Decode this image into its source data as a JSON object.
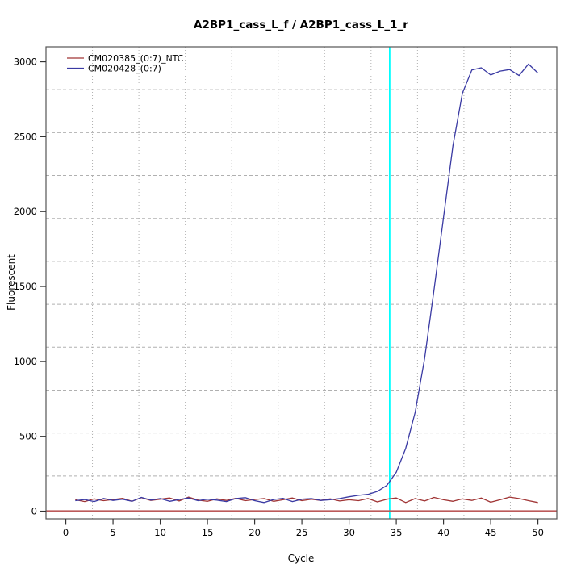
{
  "figure": {
    "background": "#ffffff"
  },
  "chart_data": {
    "type": "line",
    "title": "A2BP1_cass_L_f / A2BP1_cass_L_1_r",
    "xlabel": "Cycle",
    "ylabel": "Fluorescent",
    "x_ticks": [
      0,
      5,
      10,
      15,
      20,
      25,
      30,
      35,
      40,
      45,
      50
    ],
    "y_ticks": [
      0,
      500,
      1000,
      1500,
      2000,
      2500,
      3000
    ],
    "xlim": [
      -2.1,
      52.0
    ],
    "ylim": [
      -51,
      3100
    ],
    "grid": {
      "nx": 11,
      "ny": 11,
      "color": "#b0b0b0"
    },
    "x": [
      1,
      2,
      3,
      4,
      5,
      6,
      7,
      8,
      9,
      10,
      11,
      12,
      13,
      14,
      15,
      16,
      17,
      18,
      19,
      20,
      21,
      22,
      23,
      24,
      25,
      26,
      27,
      28,
      29,
      30,
      31,
      32,
      33,
      34,
      35,
      36,
      37,
      38,
      39,
      40,
      41,
      42,
      43,
      44,
      45,
      46,
      47,
      48,
      49,
      50
    ],
    "series": [
      {
        "name": "CM020385_(0:7)_NTC",
        "color": "#a03434",
        "values": [
          76,
          64,
          82,
          70,
          78,
          86,
          66,
          90,
          72,
          80,
          88,
          68,
          94,
          74,
          66,
          82,
          72,
          86,
          70,
          78,
          84,
          66,
          76,
          88,
          70,
          80,
          72,
          82,
          68,
          76,
          70,
          84,
          62,
          80,
          88,
          58,
          84,
          68,
          92,
          76,
          66,
          82,
          72,
          88,
          60,
          76,
          94,
          84,
          70,
          58
        ]
      },
      {
        "name": "CM020428_(0:7)",
        "color": "#3a3aa3",
        "values": [
          70,
          78,
          64,
          85,
          72,
          80,
          66,
          92,
          74,
          84,
          66,
          78,
          88,
          70,
          80,
          74,
          64,
          84,
          90,
          70,
          58,
          78,
          86,
          64,
          80,
          84,
          72,
          76,
          84,
          96,
          106,
          112,
          132,
          172,
          260,
          420,
          660,
          1020,
          1480,
          1960,
          2440,
          2790,
          2945,
          2960,
          2912,
          2938,
          2948,
          2908,
          2985,
          2925
        ]
      }
    ],
    "threshold_line": {
      "x": 34.3,
      "color": "#00ffff"
    },
    "baseline": {
      "y": 0,
      "color": "#bc5a5a"
    },
    "legend": {
      "position": "top-left",
      "entries": [
        "CM020385_(0:7)_NTC",
        "CM020428_(0:7)"
      ]
    }
  }
}
